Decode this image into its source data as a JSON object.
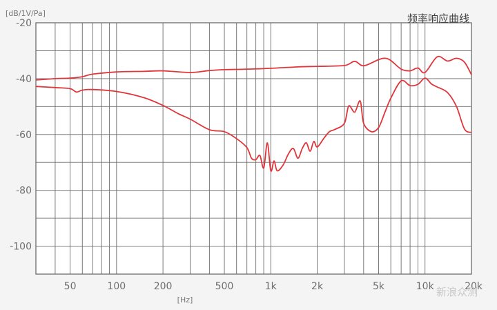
{
  "chart_data": {
    "type": "line",
    "title": "频率响应曲线",
    "ylabel": "[dB/1V/Pa]",
    "xlabel": "[Hz]",
    "x_scale": "log",
    "xlim": [
      30,
      20000
    ],
    "ylim": [
      -110,
      -20
    ],
    "y_ticks": [
      -20,
      -40,
      -60,
      -80,
      -100
    ],
    "y_tick_labels": [
      "-20",
      "-40",
      "-60",
      "-80",
      "-100"
    ],
    "x_ticks": [
      50,
      100,
      200,
      500,
      1000,
      2000,
      5000,
      10000,
      20000
    ],
    "x_tick_labels": [
      "50",
      "100",
      "200",
      "500",
      "1k",
      "2k",
      "5k",
      "10k",
      "20k"
    ],
    "grid": true,
    "line_color": "#e0353a",
    "grid_color": "#6b6b6b",
    "series": [
      {
        "x": [
          30,
          40,
          50,
          60,
          70,
          100,
          150,
          200,
          300,
          400,
          500,
          700,
          1000,
          1500,
          2000,
          3000,
          3500,
          4000,
          5000,
          5500,
          6000,
          7000,
          8000,
          9000,
          10000,
          12000,
          14000,
          16000,
          18000,
          20000
        ],
        "y": [
          -40.5,
          -40,
          -39.8,
          -39.3,
          -38.4,
          -37.6,
          -37.4,
          -37.2,
          -37.8,
          -37.1,
          -36.8,
          -36.6,
          -36.3,
          -35.8,
          -35.6,
          -35.3,
          -33.8,
          -35.4,
          -33.2,
          -32.7,
          -33.5,
          -36.6,
          -37.2,
          -36.2,
          -37.8,
          -32.2,
          -33.7,
          -32.7,
          -34.1,
          -38.6
        ]
      },
      {
        "x": [
          30,
          40,
          50,
          55,
          60,
          70,
          100,
          150,
          200,
          250,
          300,
          400,
          500,
          600,
          700,
          750,
          800,
          850,
          900,
          950,
          1000,
          1050,
          1100,
          1200,
          1300,
          1400,
          1500,
          1600,
          1700,
          1800,
          1900,
          2000,
          2200,
          2400,
          2600,
          3000,
          3200,
          3500,
          3800,
          4000,
          4500,
          5000,
          5500,
          6000,
          7000,
          8000,
          9000,
          10000,
          11000,
          12000,
          14000,
          16000,
          18000,
          20000
        ],
        "y": [
          -42.8,
          -43.2,
          -43.6,
          -44.8,
          -44.1,
          -43.9,
          -44.6,
          -46.8,
          -49.6,
          -52.5,
          -54.5,
          -58.3,
          -59,
          -61.5,
          -64.7,
          -68.5,
          -69,
          -67.5,
          -72,
          -63,
          -73,
          -69.5,
          -73,
          -71,
          -67,
          -65,
          -68.5,
          -65,
          -63,
          -66,
          -62.5,
          -64.5,
          -61.5,
          -59,
          -58.2,
          -56,
          -49.8,
          -52,
          -48,
          -56,
          -59,
          -57.5,
          -52,
          -47,
          -40.8,
          -42.5,
          -42,
          -39.8,
          -41.9,
          -43,
          -45,
          -50,
          -58,
          -59.3
        ]
      }
    ]
  },
  "watermark": "新浪众测"
}
